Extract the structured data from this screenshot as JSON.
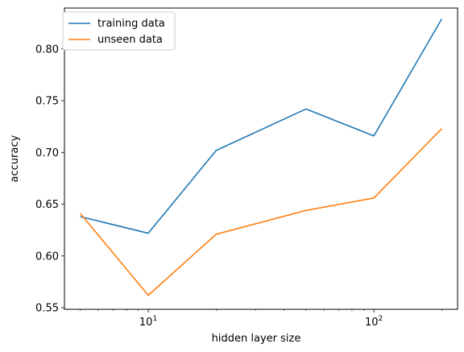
{
  "chart_data": {
    "type": "line",
    "xscale": "log",
    "xlabel": "hidden layer size",
    "ylabel": "accuracy",
    "xlim": [
      4.25,
      235
    ],
    "ylim": [
      0.5485,
      0.8395
    ],
    "xticks": [
      {
        "value": 10,
        "base": "10",
        "exp": "1"
      },
      {
        "value": 100,
        "base": "10",
        "exp": "2"
      }
    ],
    "yticks": [
      0.55,
      0.6,
      0.65,
      0.7,
      0.75,
      0.8
    ],
    "ytick_labels": [
      "0.55",
      "0.60",
      "0.65",
      "0.70",
      "0.75",
      "0.80"
    ],
    "x": [
      5,
      10,
      20,
      50,
      100,
      200
    ],
    "series": [
      {
        "name": "training data",
        "color": "#1f77b4",
        "values": [
          0.638,
          0.622,
          0.702,
          0.742,
          0.716,
          0.829
        ]
      },
      {
        "name": "unseen data",
        "color": "#ff7f0e",
        "values": [
          0.641,
          0.562,
          0.621,
          0.644,
          0.656,
          0.723
        ]
      }
    ],
    "legend": "top-left",
    "grid": false
  }
}
